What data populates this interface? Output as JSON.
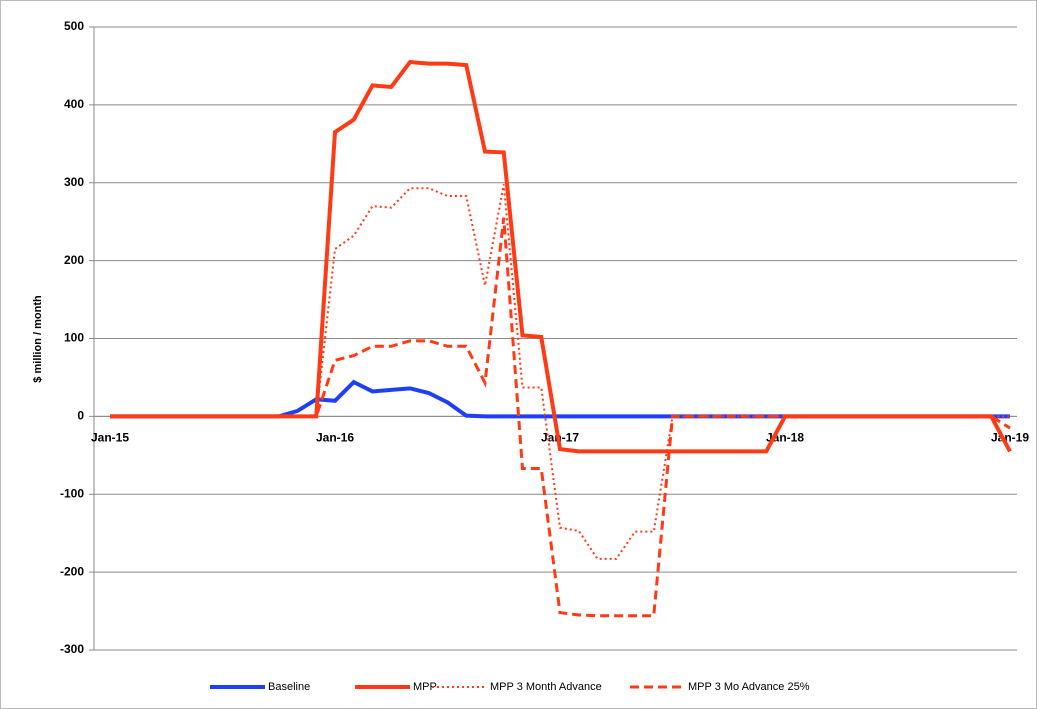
{
  "chart_data": {
    "type": "line",
    "y_label": "$ million / month",
    "categories": [
      "Jan-15",
      null,
      null,
      null,
      null,
      null,
      null,
      null,
      null,
      null,
      null,
      null,
      "Jan-16",
      null,
      null,
      null,
      null,
      null,
      null,
      null,
      null,
      null,
      null,
      null,
      "Jan-17",
      null,
      null,
      null,
      null,
      null,
      null,
      null,
      null,
      null,
      null,
      null,
      "Jan-18",
      null,
      null,
      null,
      null,
      null,
      null,
      null,
      null,
      null,
      null,
      null,
      "Jan-19"
    ],
    "series": [
      {
        "name": "Baseline",
        "color": "#1f3ff5",
        "dash": "solid",
        "values": [
          0,
          0,
          0,
          0,
          0,
          0,
          0,
          0,
          0,
          0,
          7,
          22,
          20,
          44,
          32,
          34,
          36,
          30,
          18,
          1,
          0,
          0,
          0,
          0,
          0,
          0,
          0,
          0,
          0,
          0,
          0,
          0,
          0,
          0,
          0,
          0,
          0,
          0,
          0,
          0,
          0,
          0,
          0,
          0,
          0,
          0,
          0,
          0,
          0
        ]
      },
      {
        "name": "MPP",
        "color": "#ff3a14",
        "dash": "solid",
        "values": [
          0,
          0,
          0,
          0,
          0,
          0,
          0,
          0,
          0,
          0,
          0,
          0,
          365,
          381,
          425,
          423,
          455,
          453,
          453,
          451,
          340,
          339,
          104,
          102,
          -42,
          -45,
          -45,
          -45,
          -45,
          -45,
          -45,
          -45,
          -45,
          -45,
          -45,
          -45,
          0,
          0,
          0,
          0,
          0,
          0,
          0,
          0,
          0,
          0,
          0,
          0,
          -45
        ]
      },
      {
        "name": "MPP 3 Month Advance",
        "color": "#ff3a14",
        "dash": "dotted",
        "values": [
          0,
          0,
          0,
          0,
          0,
          0,
          0,
          0,
          0,
          0,
          0,
          0,
          215,
          232,
          270,
          268,
          293,
          293,
          283,
          283,
          168,
          298,
          37,
          37,
          -143,
          -147,
          -183,
          -183,
          -148,
          -148,
          0,
          0,
          0,
          0,
          0,
          0,
          0,
          0,
          0,
          0,
          0,
          0,
          0,
          0,
          0,
          0,
          0,
          0,
          0
        ]
      },
      {
        "name": "MPP 3 Mo Advance 25%",
        "color": "#ff3a14",
        "dash": "dashed",
        "values": [
          0,
          0,
          0,
          0,
          0,
          0,
          0,
          0,
          0,
          0,
          0,
          0,
          72,
          78,
          90,
          90,
          97,
          97,
          90,
          90,
          43,
          255,
          -67,
          -67,
          -252,
          -255,
          -256,
          -256,
          -256,
          -256,
          0,
          0,
          0,
          0,
          0,
          0,
          0,
          0,
          0,
          0,
          0,
          0,
          0,
          0,
          0,
          0,
          0,
          0,
          -15
        ]
      }
    ],
    "ylim": [
      -300,
      500
    ],
    "yticks": [
      -300,
      -200,
      -100,
      0,
      100,
      200,
      300,
      400,
      500
    ],
    "grid": true,
    "legend": "bottom"
  }
}
